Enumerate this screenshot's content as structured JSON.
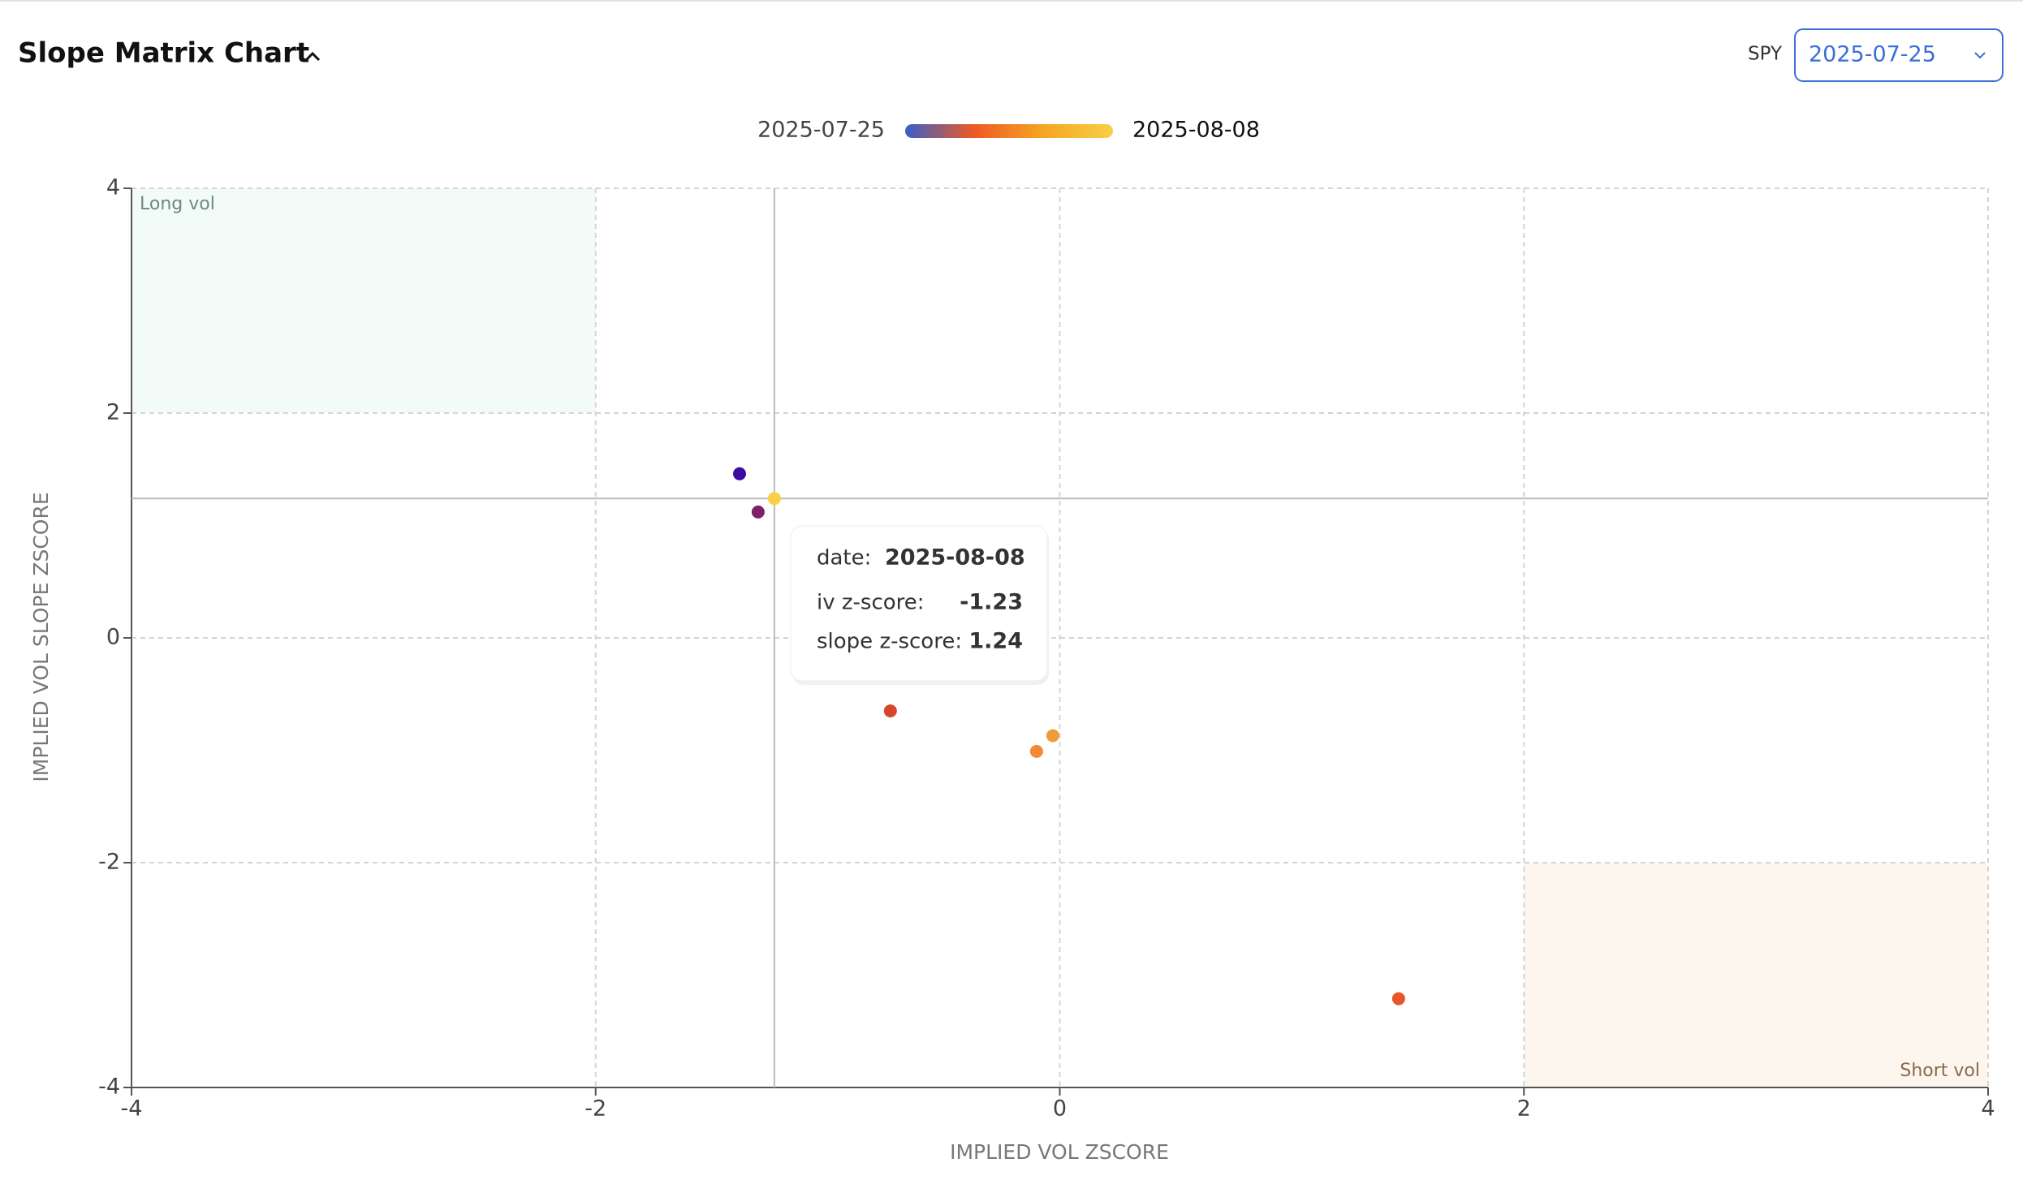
{
  "header": {
    "title": "Slope Matrix Chart",
    "ticker": "SPY",
    "selected_date": "2025-07-25"
  },
  "chart_data": {
    "type": "scatter",
    "x_label": "IMPLIED VOL ZSCORE",
    "y_label": "IMPLIED VOL SLOPE ZSCORE",
    "colorbar": {
      "start_label": "2025-07-25",
      "end_label": "2025-08-08",
      "colors": [
        "#3a5fc8",
        "#ee5a24",
        "#f5a623",
        "#f7d046"
      ]
    },
    "x": [
      -1.38,
      -1.3,
      -0.73,
      1.46,
      -0.1,
      -0.03,
      -1.23
    ],
    "y": [
      1.46,
      1.12,
      -0.65,
      -3.21,
      -1.01,
      -0.87,
      1.24
    ],
    "colors": [
      "#3a0ca3",
      "#7b2268",
      "#d4472b",
      "#e8552a",
      "#ee8a3a",
      "#f09a3a",
      "#f7d046"
    ],
    "xlim": [
      -4,
      4
    ],
    "ylim": [
      -4,
      4
    ],
    "xticks": [
      -4,
      -2,
      0,
      2,
      4
    ],
    "yticks": [
      -4,
      -2,
      0,
      2,
      4
    ],
    "grid": true,
    "regions": [
      {
        "label": "Long vol",
        "xlim": [
          -4,
          -2
        ],
        "ylim": [
          2,
          4
        ],
        "color": "#f3fbf8",
        "text_color": "#6b8a80"
      },
      {
        "label": "Short vol",
        "xlim": [
          2,
          4
        ],
        "ylim": [
          -4,
          -2
        ],
        "color": "#fcf6ee",
        "text_color": "#8a6a45"
      }
    ],
    "tooltip": {
      "date_label": "date:",
      "date": "2025-08-08",
      "x_label": "iv z-score:",
      "y_label": "slope z-score:"
    }
  }
}
